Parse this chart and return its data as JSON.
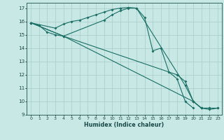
{
  "bg_color": "#c8e8e6",
  "line_color": "#1a6e64",
  "grid_color": "#a8ccca",
  "xlabel": "Humidex (Indice chaleur)",
  "xlim": [
    -0.5,
    23.5
  ],
  "ylim": [
    9,
    17.4
  ],
  "yticks": [
    9,
    10,
    11,
    12,
    13,
    14,
    15,
    16,
    17
  ],
  "xticks": [
    0,
    1,
    2,
    3,
    4,
    5,
    6,
    7,
    8,
    9,
    10,
    11,
    12,
    13,
    14,
    15,
    16,
    17,
    18,
    19,
    20,
    21,
    22,
    23
  ],
  "line1_x": [
    0,
    1,
    2,
    3,
    4,
    9,
    10,
    11,
    12,
    13,
    14,
    15,
    16,
    17,
    18,
    19,
    20
  ],
  "line1_y": [
    15.9,
    15.7,
    15.2,
    15.0,
    14.9,
    16.1,
    16.5,
    16.8,
    17.0,
    17.0,
    16.3,
    13.8,
    14.0,
    12.2,
    11.7,
    10.0,
    9.5
  ],
  "line2_x": [
    0,
    3,
    4,
    5,
    6,
    7,
    8,
    9,
    10,
    11,
    12,
    13,
    19,
    20,
    21,
    22
  ],
  "line2_y": [
    15.9,
    15.5,
    15.8,
    16.0,
    16.1,
    16.3,
    16.5,
    16.7,
    16.9,
    17.0,
    17.05,
    17.0,
    11.2,
    10.0,
    9.5,
    9.5
  ],
  "line3_x": [
    0,
    4,
    20,
    21,
    22,
    23
  ],
  "line3_y": [
    15.9,
    14.9,
    10.0,
    9.5,
    9.5,
    9.5
  ],
  "line4_x": [
    0,
    4,
    18,
    19,
    20,
    21,
    22,
    23
  ],
  "line4_y": [
    15.9,
    14.9,
    12.0,
    11.5,
    10.0,
    9.5,
    9.4,
    9.5
  ]
}
